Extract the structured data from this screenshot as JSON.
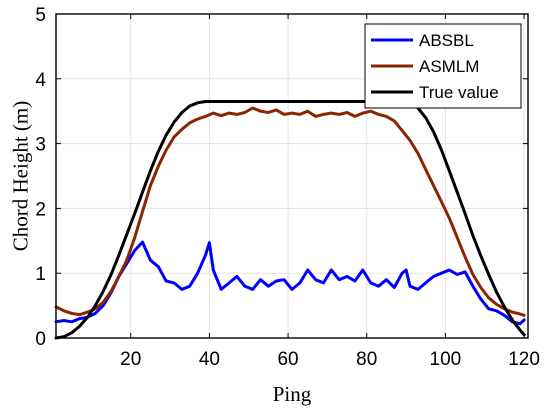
{
  "chart_data": {
    "type": "line",
    "xlabel": "Ping",
    "ylabel": "Chord Height (m)",
    "xlim": [
      1,
      121
    ],
    "ylim": [
      0,
      5
    ],
    "xticks": [
      20,
      40,
      60,
      80,
      100,
      120
    ],
    "yticks": [
      0,
      1,
      2,
      3,
      4,
      5
    ],
    "grid": true,
    "legend_position": "top-right",
    "series": [
      {
        "name": "ABSBL",
        "color": "#0000ff",
        "x": [
          1,
          3,
          5,
          7,
          9,
          11,
          13,
          15,
          17,
          19,
          21,
          23,
          25,
          27,
          29,
          31,
          33,
          35,
          37,
          39,
          40,
          41,
          43,
          45,
          47,
          49,
          51,
          53,
          55,
          57,
          59,
          61,
          63,
          65,
          67,
          69,
          71,
          73,
          75,
          77,
          79,
          81,
          83,
          85,
          87,
          89,
          90,
          91,
          93,
          95,
          97,
          99,
          101,
          103,
          105,
          107,
          109,
          111,
          113,
          115,
          117,
          119,
          120
        ],
        "values": [
          0.25,
          0.27,
          0.25,
          0.3,
          0.32,
          0.38,
          0.5,
          0.7,
          0.95,
          1.15,
          1.35,
          1.48,
          1.2,
          1.1,
          0.88,
          0.85,
          0.75,
          0.8,
          1.0,
          1.28,
          1.47,
          1.05,
          0.75,
          0.85,
          0.95,
          0.8,
          0.75,
          0.9,
          0.8,
          0.88,
          0.9,
          0.75,
          0.85,
          1.05,
          0.9,
          0.85,
          1.05,
          0.9,
          0.95,
          0.88,
          1.05,
          0.85,
          0.8,
          0.9,
          0.78,
          1.0,
          1.05,
          0.8,
          0.75,
          0.85,
          0.95,
          1.0,
          1.05,
          0.98,
          1.02,
          0.8,
          0.6,
          0.45,
          0.42,
          0.35,
          0.25,
          0.22,
          0.28
        ]
      },
      {
        "name": "ASMLM",
        "color": "#8b2500",
        "x": [
          1,
          3,
          5,
          7,
          9,
          11,
          13,
          15,
          17,
          19,
          21,
          23,
          25,
          27,
          29,
          31,
          33,
          35,
          37,
          39,
          41,
          43,
          45,
          47,
          49,
          51,
          53,
          55,
          57,
          59,
          61,
          63,
          65,
          67,
          69,
          71,
          73,
          75,
          77,
          79,
          81,
          83,
          85,
          87,
          89,
          91,
          93,
          95,
          97,
          99,
          101,
          103,
          105,
          107,
          109,
          111,
          113,
          115,
          117,
          119,
          120
        ],
        "values": [
          0.48,
          0.42,
          0.38,
          0.36,
          0.4,
          0.45,
          0.55,
          0.72,
          0.95,
          1.2,
          1.55,
          1.95,
          2.35,
          2.65,
          2.9,
          3.1,
          3.22,
          3.32,
          3.38,
          3.42,
          3.47,
          3.43,
          3.47,
          3.45,
          3.48,
          3.55,
          3.5,
          3.48,
          3.52,
          3.45,
          3.47,
          3.45,
          3.5,
          3.42,
          3.45,
          3.47,
          3.45,
          3.48,
          3.42,
          3.47,
          3.5,
          3.45,
          3.42,
          3.35,
          3.2,
          3.05,
          2.85,
          2.6,
          2.35,
          2.1,
          1.85,
          1.55,
          1.25,
          0.98,
          0.78,
          0.62,
          0.52,
          0.45,
          0.4,
          0.37,
          0.35
        ]
      },
      {
        "name": "True value",
        "color": "#000000",
        "x": [
          1,
          3,
          5,
          7,
          9,
          11,
          13,
          15,
          17,
          19,
          21,
          23,
          25,
          27,
          29,
          31,
          33,
          35,
          37,
          39,
          41,
          43,
          60,
          80,
          91,
          93,
          95,
          97,
          99,
          101,
          103,
          105,
          107,
          109,
          111,
          113,
          115,
          117,
          119,
          120
        ],
        "values": [
          0.0,
          0.02,
          0.08,
          0.18,
          0.32,
          0.5,
          0.72,
          0.98,
          1.28,
          1.6,
          1.92,
          2.25,
          2.58,
          2.88,
          3.13,
          3.33,
          3.48,
          3.58,
          3.63,
          3.65,
          3.65,
          3.65,
          3.65,
          3.65,
          3.63,
          3.55,
          3.4,
          3.18,
          2.9,
          2.58,
          2.25,
          1.92,
          1.58,
          1.27,
          0.98,
          0.71,
          0.48,
          0.28,
          0.12,
          0.05
        ]
      }
    ]
  }
}
